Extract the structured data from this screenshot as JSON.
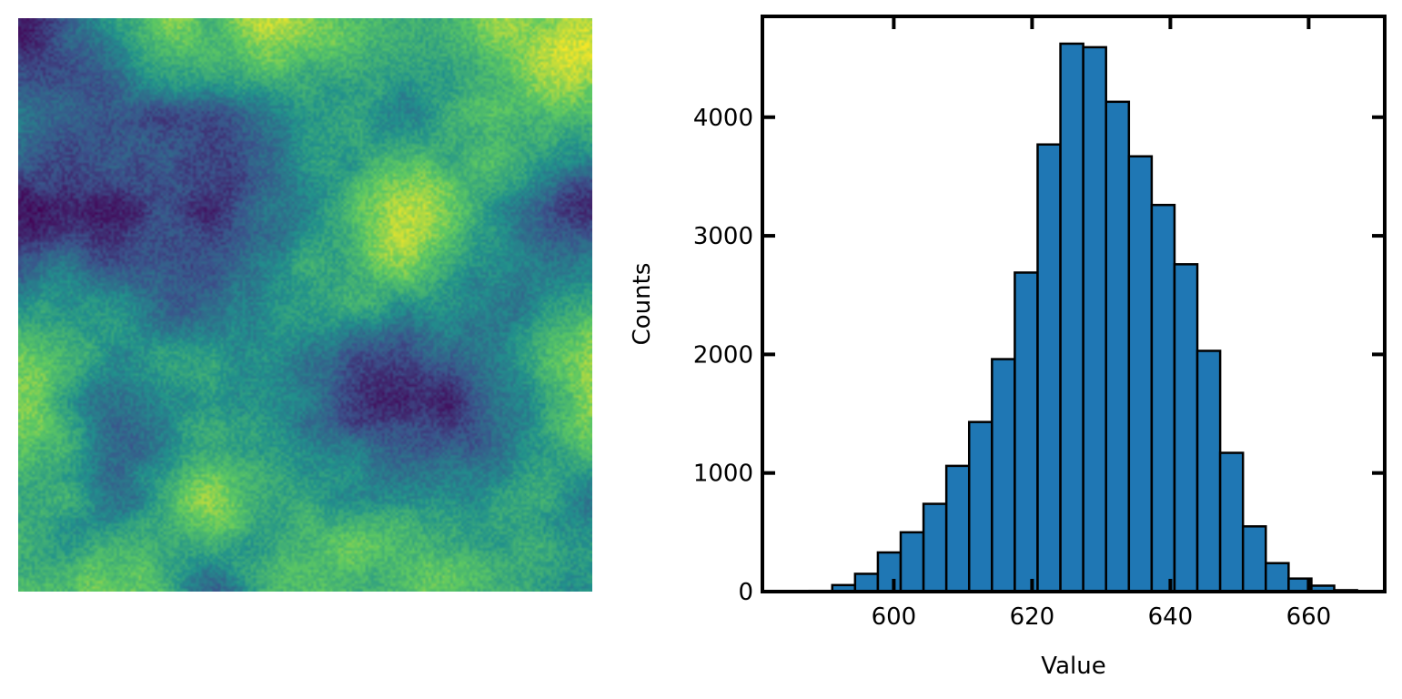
{
  "chart_data": [
    {
      "type": "heatmap",
      "colormap": "viridis",
      "axes": "off",
      "title": "",
      "colors": [
        "#440154",
        "#3b528b",
        "#21918c",
        "#5ec962",
        "#fde725"
      ]
    },
    {
      "type": "bar",
      "subtype": "histogram",
      "title": "",
      "xlabel": "Value",
      "ylabel": "Counts",
      "xlim": [
        581,
        671
      ],
      "ylim": [
        0,
        4850
      ],
      "xticks": [
        600,
        620,
        640,
        660
      ],
      "yticks": [
        0,
        1000,
        2000,
        3000,
        4000
      ],
      "bin_width": 3.3,
      "bin_start": 584.5,
      "values": [
        2,
        6,
        55,
        150,
        330,
        500,
        740,
        1060,
        1430,
        1960,
        2690,
        3770,
        4620,
        4590,
        4130,
        3670,
        3260,
        2760,
        2030,
        1170,
        550,
        240,
        110,
        50,
        12
      ],
      "bar_color": "#1f77b4",
      "edge_color": "#000000",
      "grid": false,
      "legend": "none"
    }
  ]
}
